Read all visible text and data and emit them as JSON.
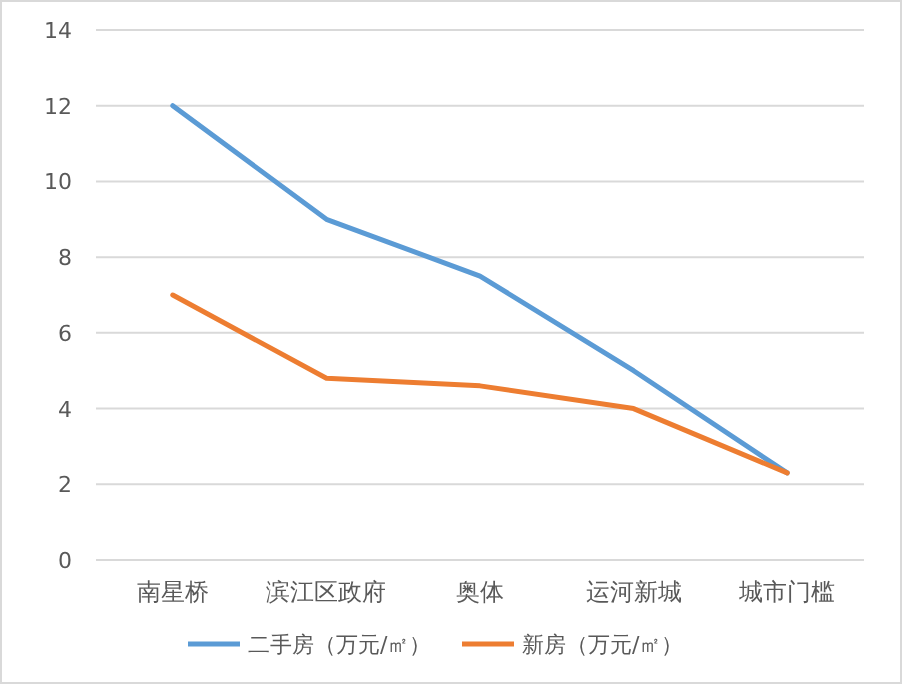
{
  "chart_data": {
    "type": "line",
    "categories": [
      "南星桥",
      "滨江区政府",
      "奥体",
      "运河新城",
      "城市门槛"
    ],
    "series": [
      {
        "name": "二手房（万元/㎡）",
        "color": "#5b9bd5",
        "values": [
          12,
          9,
          7.5,
          5,
          2.3
        ]
      },
      {
        "name": "新房（万元/㎡）",
        "color": "#ed7d31",
        "values": [
          7,
          4.8,
          4.6,
          4,
          2.3
        ]
      }
    ],
    "ylim": [
      0,
      14
    ],
    "yticks": [
      0,
      2,
      4,
      6,
      8,
      10,
      12,
      14
    ],
    "grid": "y",
    "legend": "bottom",
    "marker": "none",
    "line_style": "solid"
  }
}
